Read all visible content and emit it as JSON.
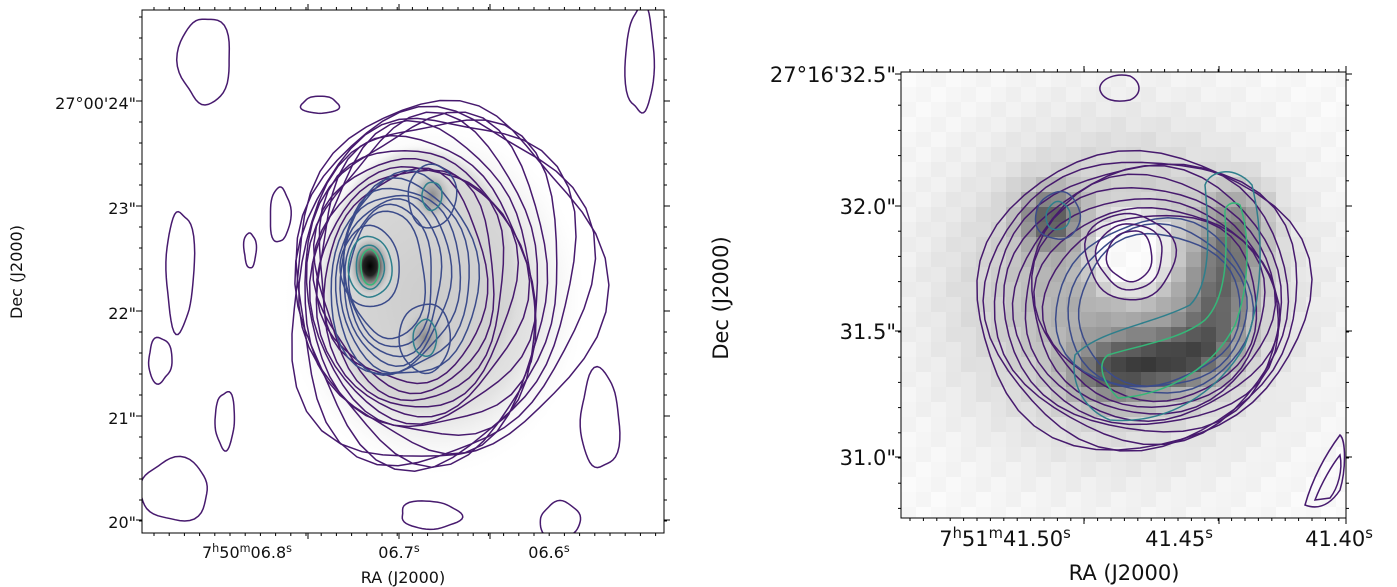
{
  "chart_data": [
    {
      "type": "heatmap",
      "title": "",
      "xlabel": "RA (J2000)",
      "ylabel": "Dec (J2000)",
      "colormap": "grayscale image with viridis-colored contours",
      "x_ticks": [
        {
          "value": 0.8,
          "label": "7h50m06.8s"
        },
        {
          "value": 0.7,
          "label": "06.7s"
        },
        {
          "value": 0.6,
          "label": "06.6s"
        }
      ],
      "y_ticks": [
        {
          "value": 24,
          "label": "27°00'24\""
        },
        {
          "value": 23,
          "label": "23\""
        },
        {
          "value": 22,
          "label": "22\""
        },
        {
          "value": 21,
          "label": "21\""
        },
        {
          "value": 20,
          "label": "20\""
        }
      ],
      "xlim": [
        0.858,
        0.508
      ],
      "ylim": [
        19.85,
        24.8
      ],
      "peaks": [
        {
          "x": 0.719,
          "y": 22.33
        },
        {
          "x": 0.674,
          "y": 23.0
        },
        {
          "x": 0.675,
          "y": 21.65
        }
      ],
      "contour_colors": [
        "#471a6e",
        "#3b4b8a",
        "#2e7f8c",
        "#35b778"
      ]
    },
    {
      "type": "heatmap",
      "title": "",
      "xlabel": "RA (J2000)",
      "ylabel": "Dec (J2000)",
      "colormap": "grayscale image with viridis-colored contours",
      "x_ticks": [
        {
          "value": 41.5,
          "label": "7h51m41.50s"
        },
        {
          "value": 41.45,
          "label": "41.45s"
        },
        {
          "value": 41.4,
          "label": "41.40s"
        }
      ],
      "y_ticks": [
        {
          "value": 32.5,
          "label": "27°16'32.5\""
        },
        {
          "value": 32.0,
          "label": "32.0\""
        },
        {
          "value": 31.5,
          "label": "31.5\""
        },
        {
          "value": 31.0,
          "label": "31.0\""
        }
      ],
      "xlim": [
        41.529,
        41.404
      ],
      "ylim": [
        30.75,
        32.52
      ],
      "peaks": [
        {
          "x": 41.468,
          "y": 31.33
        },
        {
          "x": 41.447,
          "y": 31.95
        },
        {
          "x": 41.489,
          "y": 31.94
        }
      ],
      "hole": {
        "x": 41.471,
        "y": 31.77
      },
      "contour_colors": [
        "#471a6e",
        "#3b4b8a",
        "#2e7f8c",
        "#35b778"
      ]
    }
  ]
}
